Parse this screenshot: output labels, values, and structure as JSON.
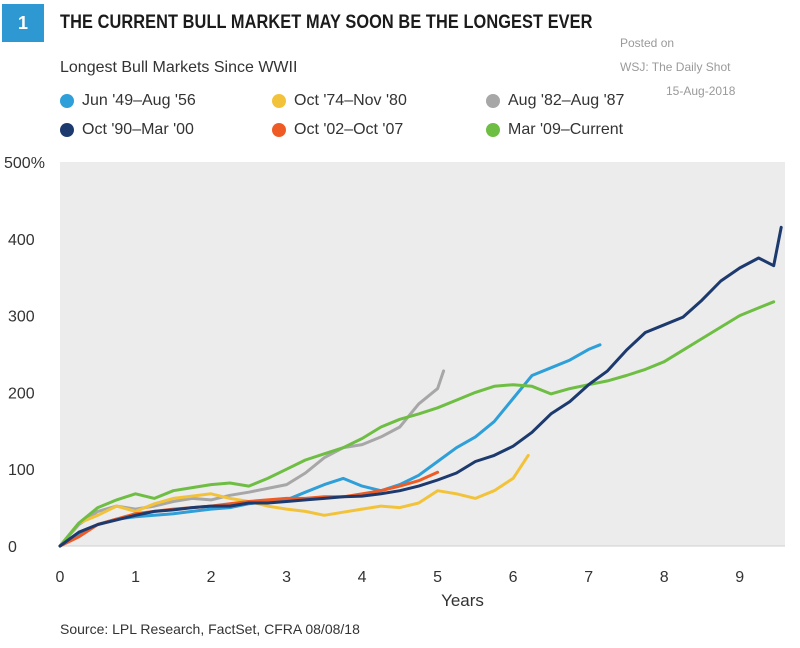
{
  "badge": "1",
  "title": "THE CURRENT BULL MARKET MAY SOON BE THE LONGEST EVER",
  "watermark": {
    "line1": "Posted on",
    "line2": "WSJ: The Daily Shot",
    "line3": "15-Aug-2018"
  },
  "subtitle": "Longest Bull Markets Since WWII",
  "source": "Source: LPL Research, FactSet, CFRA   08/08/18",
  "chart_data": {
    "type": "line",
    "title": "THE CURRENT BULL MARKET MAY SOON BE THE LONGEST EVER",
    "subtitle": "Longest Bull Markets Since WWII",
    "xlabel": "Years",
    "ylabel": "",
    "xlim": [
      0,
      9.6
    ],
    "ylim": [
      0,
      500
    ],
    "xticks": [
      "0",
      "1",
      "2",
      "3",
      "4",
      "5",
      "6",
      "7",
      "8",
      "9"
    ],
    "yticks": [
      "0",
      "100",
      "200",
      "300",
      "400",
      "500%"
    ],
    "grid": false,
    "legend_position": "top",
    "series": [
      {
        "name": "Jun '49–Aug '56",
        "color": "#2e9fd8",
        "x": [
          0,
          0.25,
          0.5,
          0.75,
          1.0,
          1.25,
          1.5,
          1.75,
          2.0,
          2.25,
          2.5,
          2.75,
          3.0,
          3.25,
          3.5,
          3.75,
          4.0,
          4.25,
          4.5,
          4.75,
          5.0,
          5.25,
          5.5,
          5.75,
          6.0,
          6.25,
          6.5,
          6.75,
          7.0,
          7.15
        ],
        "y": [
          0,
          15,
          28,
          35,
          38,
          40,
          42,
          45,
          48,
          50,
          55,
          58,
          60,
          70,
          80,
          88,
          78,
          72,
          80,
          92,
          110,
          128,
          142,
          162,
          192,
          222,
          232,
          242,
          256,
          262
        ]
      },
      {
        "name": "Oct '74–Nov '80",
        "color": "#f2c33a",
        "x": [
          0,
          0.25,
          0.5,
          0.75,
          1.0,
          1.25,
          1.5,
          1.75,
          2.0,
          2.25,
          2.5,
          2.75,
          3.0,
          3.25,
          3.5,
          3.75,
          4.0,
          4.25,
          4.5,
          4.75,
          5.0,
          5.25,
          5.5,
          5.75,
          6.0,
          6.2
        ],
        "y": [
          0,
          30,
          40,
          52,
          45,
          55,
          62,
          65,
          68,
          62,
          58,
          52,
          48,
          45,
          40,
          44,
          48,
          52,
          50,
          56,
          72,
          68,
          62,
          72,
          88,
          118
        ]
      },
      {
        "name": "Aug '82–Aug '87",
        "color": "#a7a7a7",
        "x": [
          0,
          0.25,
          0.5,
          0.75,
          1.0,
          1.25,
          1.5,
          1.75,
          2.0,
          2.25,
          2.5,
          2.75,
          3.0,
          3.25,
          3.5,
          3.75,
          4.0,
          4.25,
          4.5,
          4.75,
          5.0,
          5.08
        ],
        "y": [
          0,
          28,
          45,
          52,
          48,
          52,
          58,
          62,
          60,
          66,
          70,
          75,
          80,
          95,
          115,
          128,
          132,
          142,
          155,
          185,
          205,
          228
        ]
      },
      {
        "name": "Oct '90–Mar '00",
        "color": "#1d3a6e",
        "x": [
          0,
          0.25,
          0.5,
          0.75,
          1.0,
          1.25,
          1.5,
          1.75,
          2.0,
          2.25,
          2.5,
          2.75,
          3.0,
          3.25,
          3.5,
          3.75,
          4.0,
          4.25,
          4.5,
          4.75,
          5.0,
          5.25,
          5.5,
          5.75,
          6.0,
          6.25,
          6.5,
          6.75,
          7.0,
          7.25,
          7.5,
          7.75,
          8.0,
          8.25,
          8.5,
          8.75,
          9.0,
          9.25,
          9.45,
          9.55
        ],
        "y": [
          0,
          18,
          28,
          34,
          40,
          45,
          47,
          50,
          52,
          52,
          56,
          56,
          58,
          60,
          62,
          64,
          65,
          68,
          72,
          78,
          86,
          95,
          110,
          118,
          130,
          148,
          172,
          188,
          210,
          228,
          255,
          278,
          288,
          298,
          320,
          345,
          362,
          375,
          365,
          415
        ]
      },
      {
        "name": "Oct '02–Oct '07",
        "color": "#ef5b24",
        "x": [
          0,
          0.25,
          0.5,
          0.75,
          1.0,
          1.25,
          1.5,
          1.75,
          2.0,
          2.25,
          2.5,
          2.75,
          3.0,
          3.25,
          3.5,
          3.75,
          4.0,
          4.25,
          4.5,
          4.75,
          5.0
        ],
        "y": [
          0,
          12,
          28,
          35,
          42,
          45,
          48,
          50,
          52,
          55,
          58,
          60,
          62,
          62,
          64,
          64,
          68,
          72,
          78,
          85,
          96
        ]
      },
      {
        "name": "Mar '09–Current",
        "color": "#6fbe44",
        "x": [
          0,
          0.25,
          0.5,
          0.75,
          1.0,
          1.25,
          1.5,
          1.75,
          2.0,
          2.25,
          2.5,
          2.75,
          3.0,
          3.25,
          3.5,
          3.75,
          4.0,
          4.25,
          4.5,
          4.75,
          5.0,
          5.25,
          5.5,
          5.75,
          6.0,
          6.25,
          6.5,
          6.75,
          7.0,
          7.25,
          7.5,
          7.75,
          8.0,
          8.25,
          8.5,
          8.75,
          9.0,
          9.25,
          9.45
        ],
        "y": [
          0,
          30,
          50,
          60,
          68,
          62,
          72,
          76,
          80,
          82,
          78,
          88,
          100,
          112,
          120,
          128,
          140,
          155,
          165,
          172,
          180,
          190,
          200,
          208,
          210,
          208,
          198,
          205,
          210,
          215,
          222,
          230,
          240,
          255,
          270,
          285,
          300,
          310,
          318
        ]
      }
    ]
  }
}
